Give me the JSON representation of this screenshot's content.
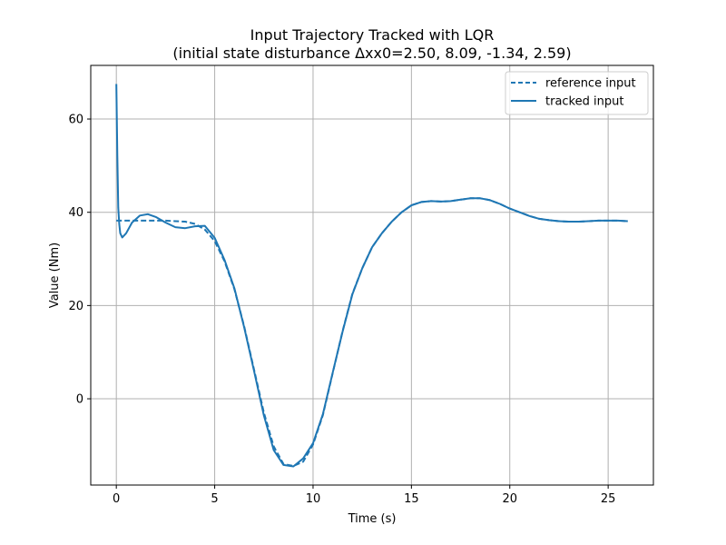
{
  "chart_data": {
    "type": "line",
    "title": "Input Trajectory Tracked with LQR",
    "subtitle": "(initial state disturbance Δxx0=2.50, 8.09, -1.34, 2.59)",
    "xlabel": "Time (s)",
    "ylabel": "Value (Nm)",
    "xlim": [
      -1.3,
      27.3
    ],
    "ylim": [
      -18.5,
      71.5
    ],
    "xticks": [
      0,
      5,
      10,
      15,
      20,
      25
    ],
    "yticks": [
      0,
      20,
      40,
      60
    ],
    "grid": true,
    "legend_position": "top-right",
    "color": "#1f77b4",
    "series": [
      {
        "name": "reference input",
        "style": "dashed",
        "x": [
          0,
          0.5,
          1,
          1.5,
          2,
          2.5,
          3,
          3.5,
          4,
          4.5,
          5,
          5.5,
          6,
          6.5,
          7,
          7.5,
          8,
          8.5,
          9,
          9.5,
          10,
          10.5,
          11,
          11.5,
          12,
          12.5,
          13,
          13.5,
          14,
          14.5,
          15,
          15.5,
          16,
          16.5,
          17,
          17.5,
          18,
          18.5,
          19,
          19.5,
          20,
          20.5,
          21,
          21.5,
          22,
          22.5,
          23,
          23.5,
          24,
          24.5,
          25,
          25.5,
          26
        ],
        "values": [
          38.2,
          38.2,
          38.2,
          38.2,
          38.2,
          38.2,
          38.1,
          38.0,
          37.5,
          36.3,
          33.8,
          29.5,
          23.5,
          15.5,
          6.3,
          -3.0,
          -10.2,
          -14.0,
          -14.4,
          -13.5,
          -9.8,
          -3.5,
          5.5,
          14.5,
          22.5,
          28.0,
          32.5,
          35.5,
          38.0,
          40.0,
          41.5,
          42.2,
          42.4,
          42.3,
          42.4,
          42.7,
          43.0,
          43.0,
          42.6,
          41.8,
          40.8,
          40.0,
          39.2,
          38.6,
          38.3,
          38.1,
          38.0,
          38.0,
          38.1,
          38.2,
          38.2,
          38.2,
          38.1
        ]
      },
      {
        "name": "tracked input",
        "style": "solid",
        "x": [
          0,
          0.05,
          0.1,
          0.15,
          0.2,
          0.3,
          0.5,
          0.8,
          1.2,
          1.6,
          2.0,
          2.5,
          3.0,
          3.5,
          4.0,
          4.5,
          5,
          5.5,
          6,
          6.5,
          7,
          7.5,
          8,
          8.5,
          9,
          9.5,
          10,
          10.5,
          11,
          11.5,
          12,
          12.5,
          13,
          13.5,
          14,
          14.5,
          15,
          15.5,
          16,
          16.5,
          17,
          17.5,
          18,
          18.5,
          19,
          19.5,
          20,
          20.5,
          21,
          21.5,
          22,
          22.5,
          23,
          23.5,
          24,
          24.5,
          25,
          25.5,
          26
        ],
        "values": [
          67.5,
          52.0,
          41.0,
          37.5,
          35.5,
          34.6,
          35.5,
          37.8,
          39.3,
          39.6,
          39.0,
          37.8,
          36.8,
          36.6,
          37.0,
          37.1,
          34.5,
          29.8,
          23.7,
          15.3,
          6.0,
          -3.6,
          -11.0,
          -14.2,
          -14.5,
          -12.8,
          -9.5,
          -3.3,
          5.6,
          14.4,
          22.4,
          28.0,
          32.5,
          35.5,
          38.0,
          40.0,
          41.5,
          42.2,
          42.4,
          42.3,
          42.4,
          42.7,
          43.0,
          43.0,
          42.6,
          41.8,
          40.8,
          40.0,
          39.2,
          38.6,
          38.3,
          38.1,
          38.0,
          38.0,
          38.1,
          38.2,
          38.2,
          38.2,
          38.1
        ]
      }
    ]
  }
}
